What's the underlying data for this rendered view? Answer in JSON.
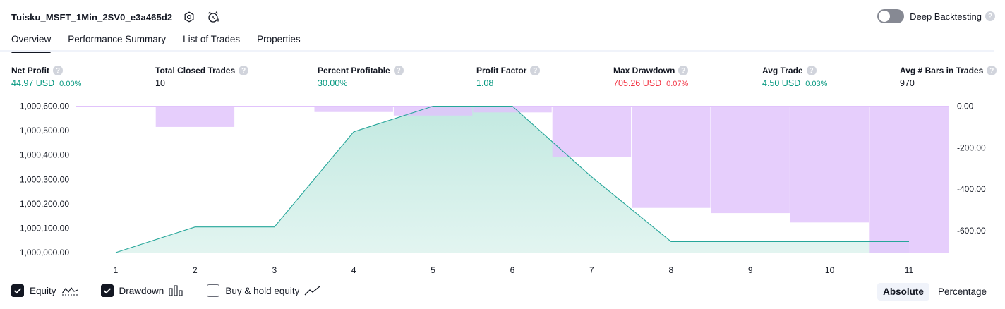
{
  "header": {
    "strategy_name": "Tuisku_MSFT_1Min_2SV0_e3a465d2",
    "icons": [
      "settings-icon",
      "alarm-add-icon"
    ],
    "deep_backtesting_label": "Deep Backtesting",
    "deep_backtesting_enabled": false,
    "help_glyph": "?"
  },
  "tabs": [
    {
      "label": "Overview",
      "active": true
    },
    {
      "label": "Performance Summary",
      "active": false
    },
    {
      "label": "List of Trades",
      "active": false
    },
    {
      "label": "Properties",
      "active": false
    }
  ],
  "stats": {
    "net_profit": {
      "label": "Net Profit",
      "value": "44.97 USD",
      "pct": "0.00%"
    },
    "total_closed_trades": {
      "label": "Total Closed Trades",
      "value": "10"
    },
    "percent_profitable": {
      "label": "Percent Profitable",
      "value": "30.00%"
    },
    "profit_factor": {
      "label": "Profit Factor",
      "value": "1.08"
    },
    "max_drawdown": {
      "label": "Max Drawdown",
      "value": "705.26 USD",
      "pct": "0.07%"
    },
    "avg_trade": {
      "label": "Avg Trade",
      "value": "4.50 USD",
      "pct": "0.03%"
    },
    "avg_bars": {
      "label": "Avg # Bars in Trades",
      "value": "970"
    }
  },
  "colors": {
    "equity_line": "#26a69a",
    "equity_fill": "#bfe8df",
    "drawdown_bar": "#e1c3fb",
    "profit": "#089981",
    "loss": "#f23645"
  },
  "chart_data": {
    "type": "area",
    "x": [
      1,
      2,
      3,
      4,
      5,
      6,
      7,
      8,
      9,
      10,
      11
    ],
    "series": [
      {
        "type": "line",
        "values": [
          1000000,
          1000105,
          1000105,
          1000495,
          1000600,
          1000600,
          1000310,
          1000045,
          1000045,
          1000045,
          1000045
        ]
      },
      {
        "type": "bar",
        "values": [
          0,
          -100,
          -3,
          -28,
          -45,
          -30,
          -245,
          -490,
          -515,
          -560,
          -705
        ]
      }
    ],
    "left_ticks": [
      "1,000,600.00",
      "1,000,500.00",
      "1,000,400.00",
      "1,000,300.00",
      "1,000,200.00",
      "1,000,100.00",
      "1,000,000.00"
    ],
    "right_ticks": [
      "0.00",
      "-200.00",
      "-400.00",
      "-600.00"
    ],
    "left_ylim": [
      1000000,
      1000600
    ],
    "right_ylim": [
      -705,
      0
    ],
    "legend": "bottom-left",
    "grid": false
  },
  "legend": {
    "equity_label": "Equity",
    "equity_checked": true,
    "drawdown_label": "Drawdown",
    "drawdown_checked": true,
    "buyhold_label": "Buy & hold equity",
    "buyhold_checked": false
  },
  "modes": {
    "absolute_label": "Absolute",
    "percentage_label": "Percentage",
    "active": "Absolute"
  }
}
